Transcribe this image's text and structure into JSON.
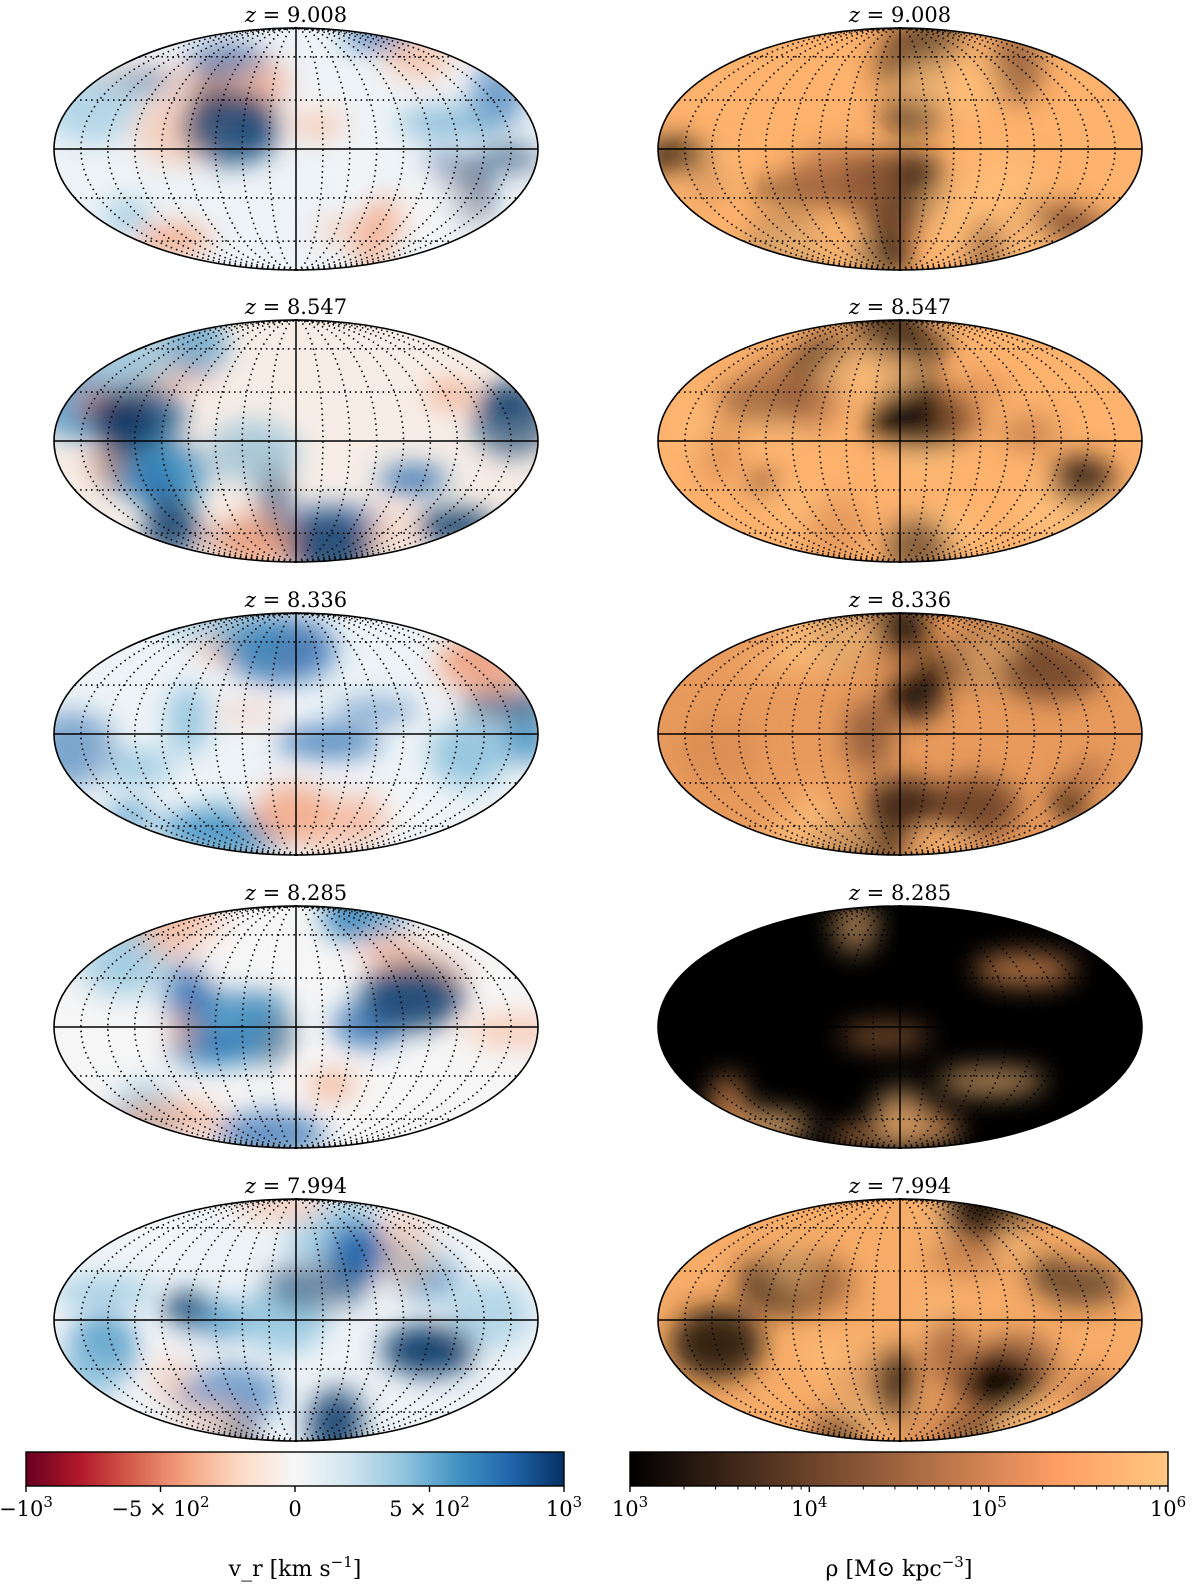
{
  "chart_data": {
    "type": "heatmap",
    "projection": "mollweide",
    "rows": [
      {
        "title": "z = 9.008"
      },
      {
        "title": "z = 8.547"
      },
      {
        "title": "z = 8.336"
      },
      {
        "title": "z = 8.285"
      },
      {
        "title": "z = 7.994"
      }
    ],
    "columns": [
      {
        "quantity": "v_r",
        "colormap": "RdBu",
        "colors": [
          "#67001f",
          "#f7f7f7",
          "#053061"
        ],
        "scale": "symlog",
        "range": [
          -1000,
          1000
        ],
        "colorbar_label": "v_r [km s^-1]",
        "colorbar_ticks": [
          "-10^3",
          "-5 × 10^2",
          "0",
          "5 × 10^2",
          "10^3"
        ],
        "tick_values": [
          -1000,
          -500,
          0,
          500,
          1000
        ]
      },
      {
        "quantity": "rho",
        "colormap": "copper",
        "colors": [
          "#000000",
          "#ffc77f"
        ],
        "scale": "log",
        "range": [
          1000,
          1000000
        ],
        "colorbar_label": "ρ [M⊙ kpc^-3]",
        "colorbar_ticks": [
          "10^3",
          "10^4",
          "10^5",
          "10^6"
        ],
        "tick_values": [
          1000,
          10000,
          100000,
          1000000
        ]
      }
    ],
    "grid": true
  }
}
